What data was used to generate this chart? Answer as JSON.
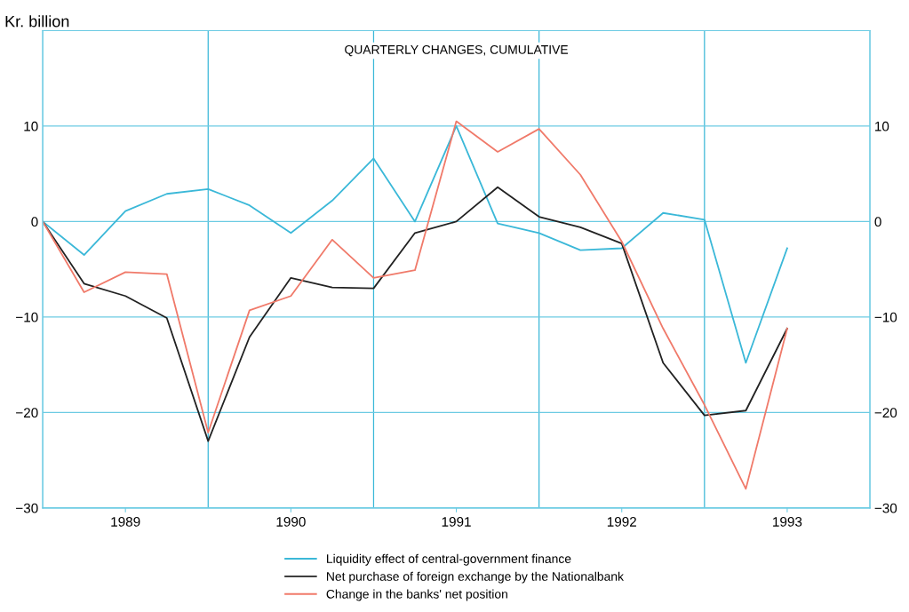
{
  "chart_data": {
    "type": "line",
    "title": "QUARTERLY CHANGES, CUMULATIVE",
    "ylabel": "Kr. billion",
    "x": [
      1989,
      1989.25,
      1989.5,
      1989.75,
      1990,
      1990.25,
      1990.5,
      1990.75,
      1991,
      1991.25,
      1991.5,
      1991.75,
      1992,
      1992.25,
      1992.5,
      1992.75,
      1993,
      1993.25,
      1993.5
    ],
    "series": [
      {
        "name": "Liquidity effect of central-government finance",
        "color": "#3bb8d8",
        "values": [
          0,
          -3.5,
          1.1,
          2.9,
          3.4,
          1.7,
          -1.2,
          2.2,
          6.6,
          0,
          10.0,
          -0.2,
          -1.2,
          -3.0,
          -2.8,
          0.9,
          0.2,
          -14.8,
          -2.8
        ]
      },
      {
        "name": "Net purchase of foreign exchange by the Nationalbank",
        "color": "#222222",
        "values": [
          0,
          -6.5,
          -7.8,
          -10.1,
          -23,
          -12.1,
          -5.9,
          -6.9,
          -7.0,
          -1.2,
          0,
          3.6,
          0.5,
          -0.6,
          -2.3,
          -14.8,
          -20.3,
          -19.8,
          -11.2
        ]
      },
      {
        "name": "Change in the banks' net position",
        "color": "#f07a6a",
        "values": [
          0,
          -7.4,
          -5.3,
          -5.5,
          -22.1,
          -9.3,
          -7.8,
          -1.9,
          -5.9,
          -5.1,
          10.5,
          7.3,
          9.7,
          4.9,
          -2.1,
          -11.2,
          -19.2,
          -28,
          -11.2
        ]
      }
    ],
    "xlim": [
      1989,
      1994
    ],
    "xticks": [
      {
        "value": 1989.5,
        "label": "1989"
      },
      {
        "value": 1990.5,
        "label": "1990"
      },
      {
        "value": 1991.5,
        "label": "1991"
      },
      {
        "value": 1992.5,
        "label": "1992"
      },
      {
        "value": 1993.5,
        "label": "1993"
      }
    ],
    "ylim": [
      -30,
      20
    ],
    "yticks": [
      -30,
      -20,
      -10,
      0,
      10
    ],
    "y2lim": [
      -30,
      20
    ],
    "y2ticks": [
      -30,
      -20,
      -10,
      0,
      10
    ],
    "ref_lines": [
      {
        "axis": "x",
        "value": 1990,
        "color": "#3bb8d8"
      },
      {
        "axis": "x",
        "value": 1991,
        "color": "#3bb8d8"
      },
      {
        "axis": "x",
        "value": 1992,
        "color": "#3bb8d8"
      },
      {
        "axis": "x",
        "value": 1993,
        "color": "#3bb8d8"
      }
    ],
    "grid": "y",
    "legend": "bottom",
    "marker": "none",
    "line_style": "solid"
  }
}
